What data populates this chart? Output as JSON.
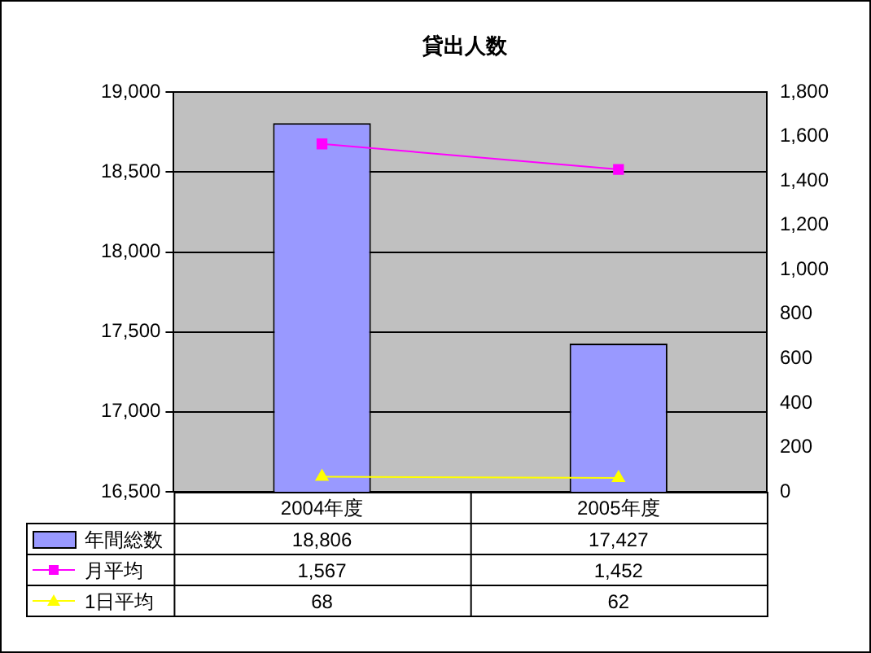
{
  "chart_data": {
    "type": "bar",
    "title": "貸出人数",
    "categories": [
      "2004年度",
      "2005年度"
    ],
    "series": [
      {
        "name": "年間総数",
        "color": "#9999ff",
        "values": [
          18806,
          17427
        ],
        "value_labels": [
          "18,806",
          "17,427"
        ]
      },
      {
        "name": "月平均",
        "type": "line",
        "color": "#ff00ff",
        "marker": "square",
        "axis": "y2",
        "values": [
          1567,
          1452
        ],
        "value_labels": [
          "1,567",
          "1,452"
        ]
      },
      {
        "name": "1日平均",
        "type": "line",
        "color": "#ffff00",
        "marker": "triangle",
        "axis": "y2",
        "values": [
          68,
          62
        ],
        "value_labels": [
          "68",
          "62"
        ]
      }
    ],
    "ylim": [
      16500,
      19000
    ],
    "yticks": [
      {
        "value": 16500,
        "label": "16,500"
      },
      {
        "value": 17000,
        "label": "17,000"
      },
      {
        "value": 17500,
        "label": "17,500"
      },
      {
        "value": 18000,
        "label": "18,000"
      },
      {
        "value": 18500,
        "label": "18,500"
      },
      {
        "value": 19000,
        "label": "19,000"
      }
    ],
    "y2lim": [
      0,
      1800
    ],
    "y2ticks": [
      0,
      200,
      400,
      600,
      800,
      {
        "value": 1000,
        "label": "1,000"
      },
      {
        "value": 1200,
        "label": "1,200"
      },
      {
        "value": 1400,
        "label": "1,400"
      },
      {
        "value": 1600,
        "label": "1,600"
      },
      {
        "value": 1800,
        "label": "1,800"
      }
    ],
    "grid": "y",
    "legend": "bottom"
  }
}
